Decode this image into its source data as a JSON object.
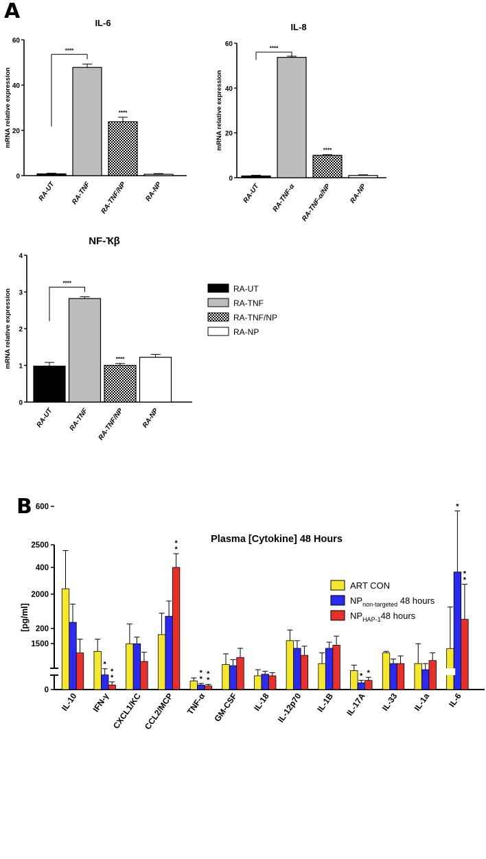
{
  "panel_a_letter": "A",
  "panel_b_letter": "B",
  "chart_data": [
    {
      "type": "bar",
      "title": "IL-6",
      "ylabel": "mRNA relative expression",
      "categories": [
        "RA-UT",
        "RA-TNF",
        "RA-TNF/NP",
        "RA-NP"
      ],
      "values": [
        0.8,
        47.8,
        23.8,
        0.6
      ],
      "errors": [
        0.3,
        1.5,
        2.0,
        0.3
      ],
      "ylim": [
        0,
        60
      ],
      "yticks": [
        0,
        20,
        40,
        60
      ],
      "significance": [
        {
          "type": "bracket",
          "from": 0,
          "to": 1,
          "label": "****"
        },
        {
          "type": "bar",
          "index": 2,
          "label": "****"
        }
      ]
    },
    {
      "type": "bar",
      "title": "IL-8",
      "ylabel": "mRNA relative expression",
      "categories": [
        "RA-UT",
        "RA-TNF-α",
        "RA-TNF-α/NP",
        "RA-NP"
      ],
      "values": [
        0.8,
        53.7,
        10.0,
        1.0
      ],
      "errors": [
        0.3,
        0.5,
        0.3,
        0.3
      ],
      "ylim": [
        0,
        60
      ],
      "yticks": [
        0,
        20,
        40,
        60
      ],
      "significance": [
        {
          "type": "bracket",
          "from": 0,
          "to": 1,
          "label": "****"
        },
        {
          "type": "bar",
          "index": 2,
          "label": "****"
        }
      ]
    },
    {
      "type": "bar",
      "title": "NF-Ҡβ",
      "ylabel": "mRNA relative expression",
      "categories": [
        "RA-UT",
        "RA-TNF",
        "RA-TNF/NP",
        "RA-NP"
      ],
      "values": [
        0.98,
        2.82,
        1.0,
        1.22
      ],
      "errors": [
        0.1,
        0.05,
        0.05,
        0.08
      ],
      "ylim": [
        0,
        4
      ],
      "yticks": [
        0,
        1,
        2,
        3,
        4
      ],
      "significance": [
        {
          "type": "bracket",
          "from": 0,
          "to": 1,
          "label": "****"
        },
        {
          "type": "bar",
          "index": 2,
          "label": "****"
        }
      ],
      "legend": {
        "entries": [
          "RA-UT",
          "RA-TNF",
          "RA-TNF/NP",
          "RA-NP"
        ],
        "placement": "right"
      }
    },
    {
      "type": "bar",
      "title": "Plasma [Cytokine] 48 Hours",
      "ylabel": "[pg/ml]",
      "categories": [
        "IL-10",
        "IFN-γ",
        "CXCL1/KC",
        "CCL2/MCP",
        "TNF-α",
        "GM-CSF",
        "IL-18",
        "IL-12p70",
        "IL-1B",
        "IL-17A",
        "IL-33",
        "IL-1a",
        "IL-6"
      ],
      "yticks": [
        0,
        200,
        400,
        600,
        1500,
        2000,
        2500
      ],
      "ylim_lower": [
        0,
        720
      ],
      "ylim_upper": [
        1200,
        2500
      ],
      "axis_break": true,
      "legend_placement": "top-right",
      "series": [
        {
          "name": "ART CON",
          "color": "#f5e82a",
          "values": [
            330,
            125,
            150,
            180,
            28,
            82,
            45,
            160,
            85,
            62,
            120,
            85,
            1450
          ],
          "errors": [
            125,
            40,
            65,
            70,
            10,
            35,
            20,
            35,
            35,
            18,
            5,
            65,
            420
          ]
        },
        {
          "name": "NP",
          "name_sub": "non-targeted",
          "name_suffix": " 48 hours",
          "color": "#2a2af0",
          "values": [
            220,
            48,
            150,
            240,
            15,
            78,
            50,
            135,
            135,
            22,
            85,
            65,
            385
          ],
          "errors": [
            60,
            20,
            22,
            50,
            5,
            20,
            10,
            25,
            20,
            8,
            15,
            20,
            200
          ]
        },
        {
          "name": "NP",
          "name_sub": "HAP-1",
          "name_suffix": "48 hours",
          "color": "#e8302a",
          "values": [
            120,
            15,
            92,
            400,
            12,
            105,
            45,
            112,
            145,
            30,
            85,
            95,
            230
          ],
          "errors": [
            45,
            10,
            30,
            45,
            5,
            30,
            10,
            30,
            30,
            10,
            25,
            25,
            115
          ]
        }
      ],
      "significance_marks": [
        {
          "series": 1,
          "index": 1,
          "label": "*"
        },
        {
          "series": 2,
          "index": 1,
          "label": "**"
        },
        {
          "series": 2,
          "index": 3,
          "label": "**"
        },
        {
          "series": 1,
          "index": 4,
          "label": "**"
        },
        {
          "series": 2,
          "index": 4,
          "label": "**"
        },
        {
          "series": 1,
          "index": 9,
          "label": "*"
        },
        {
          "series": 2,
          "index": 9,
          "label": "*"
        },
        {
          "series": 1,
          "index": 12,
          "label": "*"
        },
        {
          "series": 2,
          "index": 12,
          "label": "**"
        }
      ]
    }
  ]
}
